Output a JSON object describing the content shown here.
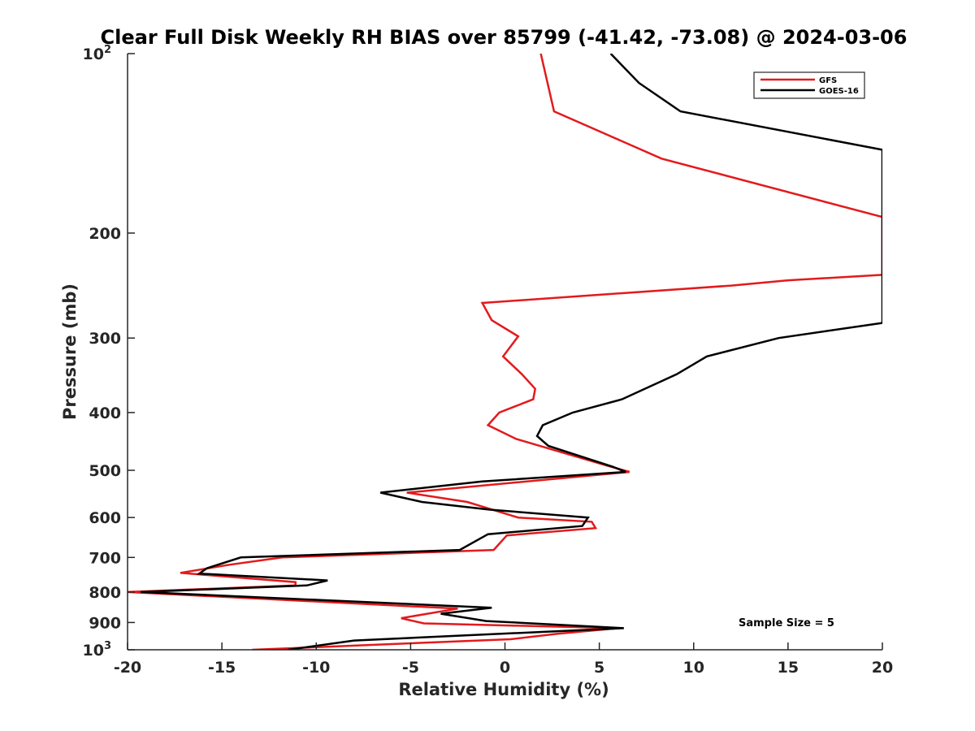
{
  "chart_data": {
    "type": "line",
    "title": "Clear Full Disk Weekly RH BIAS over 85799 (-41.42, -73.08) @ 2024-03-06",
    "xlabel": "Relative Humidity (%)",
    "ylabel": "Pressure (mb)",
    "xlim": [
      -20,
      20
    ],
    "ylim": [
      100,
      1000
    ],
    "y_scale": "log",
    "y_reversed": true,
    "grid": false,
    "legend_position": "top-right",
    "x_ticks": [
      "-20",
      "-15",
      "-10",
      "-5",
      "0",
      "5",
      "10",
      "15",
      "20"
    ],
    "y_ticks": [
      {
        "value": 100,
        "base": "10",
        "exp": "2"
      },
      {
        "value": 200,
        "label": "200"
      },
      {
        "value": 300,
        "label": "300"
      },
      {
        "value": 400,
        "label": "400"
      },
      {
        "value": 500,
        "label": "500"
      },
      {
        "value": 600,
        "label": "600"
      },
      {
        "value": 700,
        "label": "700"
      },
      {
        "value": 800,
        "label": "800"
      },
      {
        "value": 900,
        "label": "900"
      },
      {
        "value": 1000,
        "base": "10",
        "exp": "3"
      }
    ],
    "annotation": "Sample Size = 5",
    "series": [
      {
        "name": "GFS",
        "color": "#e31a1c",
        "points": [
          [
            1.9,
            100
          ],
          [
            2.6,
            125
          ],
          [
            8.3,
            150
          ],
          [
            20,
            188
          ],
          [
            20,
            235
          ],
          [
            15,
            240
          ],
          [
            12,
            245
          ],
          [
            -1.2,
            262
          ],
          [
            -0.7,
            280
          ],
          [
            0.7,
            298
          ],
          [
            -0.1,
            322
          ],
          [
            0.9,
            345
          ],
          [
            1.6,
            365
          ],
          [
            1.5,
            380
          ],
          [
            -0.3,
            400
          ],
          [
            -0.9,
            420
          ],
          [
            0.6,
            443
          ],
          [
            5.3,
            490
          ],
          [
            6.6,
            503
          ],
          [
            -5.2,
            545
          ],
          [
            -2,
            565
          ],
          [
            0.7,
            600
          ],
          [
            4.6,
            610
          ],
          [
            4.8,
            625
          ],
          [
            0.1,
            643
          ],
          [
            -0.6,
            680
          ],
          [
            -11.8,
            700
          ],
          [
            -14.6,
            720
          ],
          [
            -17.2,
            743
          ],
          [
            -11.1,
            770
          ],
          [
            -11.1,
            780
          ],
          [
            -20,
            800
          ],
          [
            -2.5,
            853
          ],
          [
            -5.5,
            885
          ],
          [
            -4.3,
            903
          ],
          [
            6,
            920
          ],
          [
            2.8,
            940
          ],
          [
            0.3,
            960
          ],
          [
            -13.4,
            1000
          ]
        ]
      },
      {
        "name": "GOES-16",
        "color": "#000000",
        "points": [
          [
            5.6,
            100
          ],
          [
            7.1,
            112
          ],
          [
            9.3,
            125
          ],
          [
            20,
            145
          ],
          [
            20,
            283
          ],
          [
            14.5,
            300
          ],
          [
            10.7,
            322
          ],
          [
            9.1,
            345
          ],
          [
            6.2,
            380
          ],
          [
            3.6,
            400
          ],
          [
            2.0,
            420
          ],
          [
            1.7,
            438
          ],
          [
            2.3,
            455
          ],
          [
            5.7,
            493
          ],
          [
            6.4,
            503
          ],
          [
            -1.2,
            522
          ],
          [
            -6.6,
            545
          ],
          [
            -4.4,
            565
          ],
          [
            -0.8,
            582
          ],
          [
            4.4,
            600
          ],
          [
            4.1,
            620
          ],
          [
            -0.9,
            640
          ],
          [
            -2.4,
            680
          ],
          [
            -14,
            700
          ],
          [
            -15.8,
            730
          ],
          [
            -16.2,
            745
          ],
          [
            -9.4,
            765
          ],
          [
            -10.5,
            780
          ],
          [
            -19.3,
            800
          ],
          [
            -0.7,
            850
          ],
          [
            -3.4,
            870
          ],
          [
            -1.0,
            895
          ],
          [
            6.3,
            920
          ],
          [
            -8,
            965
          ],
          [
            -11.5,
            1000
          ]
        ]
      }
    ]
  }
}
